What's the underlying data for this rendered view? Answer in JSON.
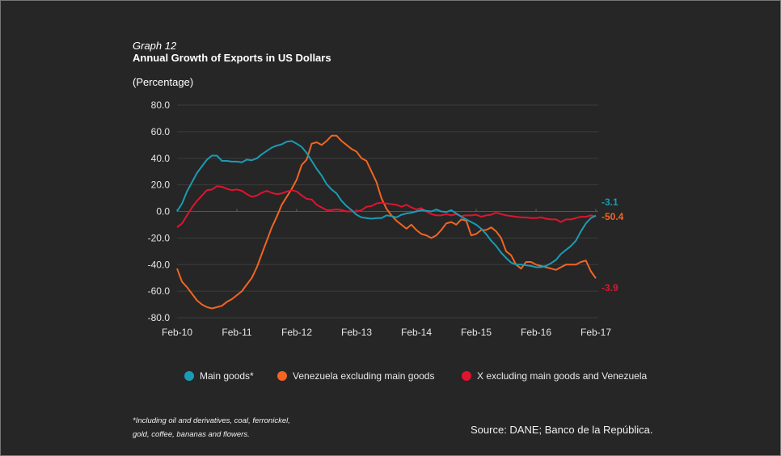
{
  "header": {
    "graph_number": "Graph 12",
    "title": "Annual Growth of Exports in US Dollars",
    "unit": "(Percentage)"
  },
  "footer": {
    "note_line1": "*Including oil and derivatives, coal, ferronickel,",
    "note_line2": "gold, coffee, bananas and flowers.",
    "source": "Source: DANE; Banco de la República."
  },
  "chart_data": {
    "type": "line",
    "title": "Annual Growth of Exports in US Dollars",
    "ylabel": "(Percentage)",
    "xlabel": "",
    "ylim": [
      -80,
      80
    ],
    "yticks": [
      "80.0",
      "60.0",
      "40.0",
      "20.0",
      "0.0",
      "-20.0",
      "-40.0",
      "-60.0",
      "-80.0"
    ],
    "ytick_values": [
      80,
      60,
      40,
      20,
      0,
      -20,
      -40,
      -60,
      -80
    ],
    "xticks": [
      "Feb-10",
      "Feb-11",
      "Feb-12",
      "Feb-13",
      "Feb-14",
      "Feb-15",
      "Feb-16",
      "Feb-17"
    ],
    "x_start": "Feb-10",
    "x_end": "Feb-17",
    "frequency": "monthly",
    "grid": true,
    "legend_position": "bottom",
    "series": [
      {
        "name": "Main goods*",
        "color": "#1a9bb5",
        "end_label": "-3.1",
        "values": [
          0,
          6,
          15,
          22,
          29,
          34,
          39,
          42,
          42,
          38,
          38,
          37.5,
          37.5,
          37,
          39,
          38.5,
          40,
          43,
          45.5,
          48,
          49.5,
          50.5,
          52.5,
          53,
          51,
          48.5,
          44,
          38,
          32,
          27,
          20.5,
          16.5,
          13.5,
          8,
          4,
          1,
          -2.5,
          -4.5,
          -5,
          -5.5,
          -5,
          -5,
          -3,
          -3.5,
          -4.5,
          -2.5,
          -1.5,
          -1,
          0,
          1,
          0.5,
          0,
          1.5,
          0,
          -0.5,
          1,
          -1.5,
          -4,
          -6,
          -8,
          -10,
          -13,
          -17,
          -22,
          -26,
          -31,
          -35,
          -38.5,
          -40,
          -40,
          -40.5,
          -41,
          -42,
          -42,
          -41,
          -39,
          -36.5,
          -32,
          -29,
          -26,
          -22,
          -15,
          -9,
          -5,
          -3.1
        ]
      },
      {
        "name": "Venezuela excluding main goods",
        "color": "#f26522",
        "end_label": "-50.4",
        "values": [
          -43,
          -53,
          -57,
          -62,
          -67,
          -70,
          -72,
          -73,
          -72,
          -71,
          -68,
          -66,
          -63,
          -60,
          -55,
          -50,
          -42,
          -32,
          -22,
          -12,
          -4,
          5,
          11,
          17,
          24,
          35,
          39,
          51,
          52,
          50,
          53,
          57,
          57,
          53,
          50,
          47,
          45,
          40,
          38,
          30,
          22,
          10,
          2,
          -3,
          -7,
          -10,
          -13,
          -10,
          -14,
          -17,
          -18,
          -20,
          -18,
          -14,
          -9,
          -8,
          -10,
          -6,
          -7,
          -18,
          -17,
          -14,
          -14,
          -12,
          -15,
          -20,
          -30,
          -33,
          -40,
          -43,
          -38,
          -38,
          -40,
          -41,
          -42,
          -43,
          -44,
          -42,
          -40,
          -40,
          -40,
          -38,
          -37,
          -45,
          -50.4
        ]
      },
      {
        "name": "X excluding main goods and Venezuela",
        "color": "#e0142f",
        "end_label": "-3.9",
        "values": [
          -12,
          -9,
          -3,
          3,
          8,
          12,
          16,
          16.5,
          19,
          18.5,
          17,
          16,
          16.5,
          15.5,
          13,
          11,
          12,
          14,
          15.5,
          14,
          13,
          13.5,
          15,
          16,
          15,
          12,
          9.5,
          9,
          5,
          3,
          1,
          1,
          1.5,
          1,
          0,
          0,
          0,
          1,
          3.5,
          4,
          6,
          6.5,
          6,
          5.5,
          5,
          3.5,
          5,
          3,
          1.5,
          2.5,
          0,
          -2,
          -3,
          -3,
          -2,
          -3,
          -2,
          -3.5,
          -3,
          -3,
          -2.5,
          -4,
          -3,
          -2.5,
          -1,
          -2,
          -3,
          -3.5,
          -4,
          -4.5,
          -4.5,
          -5,
          -5,
          -4.5,
          -5.5,
          -6,
          -6,
          -8,
          -6,
          -6,
          -5,
          -4,
          -4,
          -3,
          -3.9
        ]
      }
    ]
  }
}
